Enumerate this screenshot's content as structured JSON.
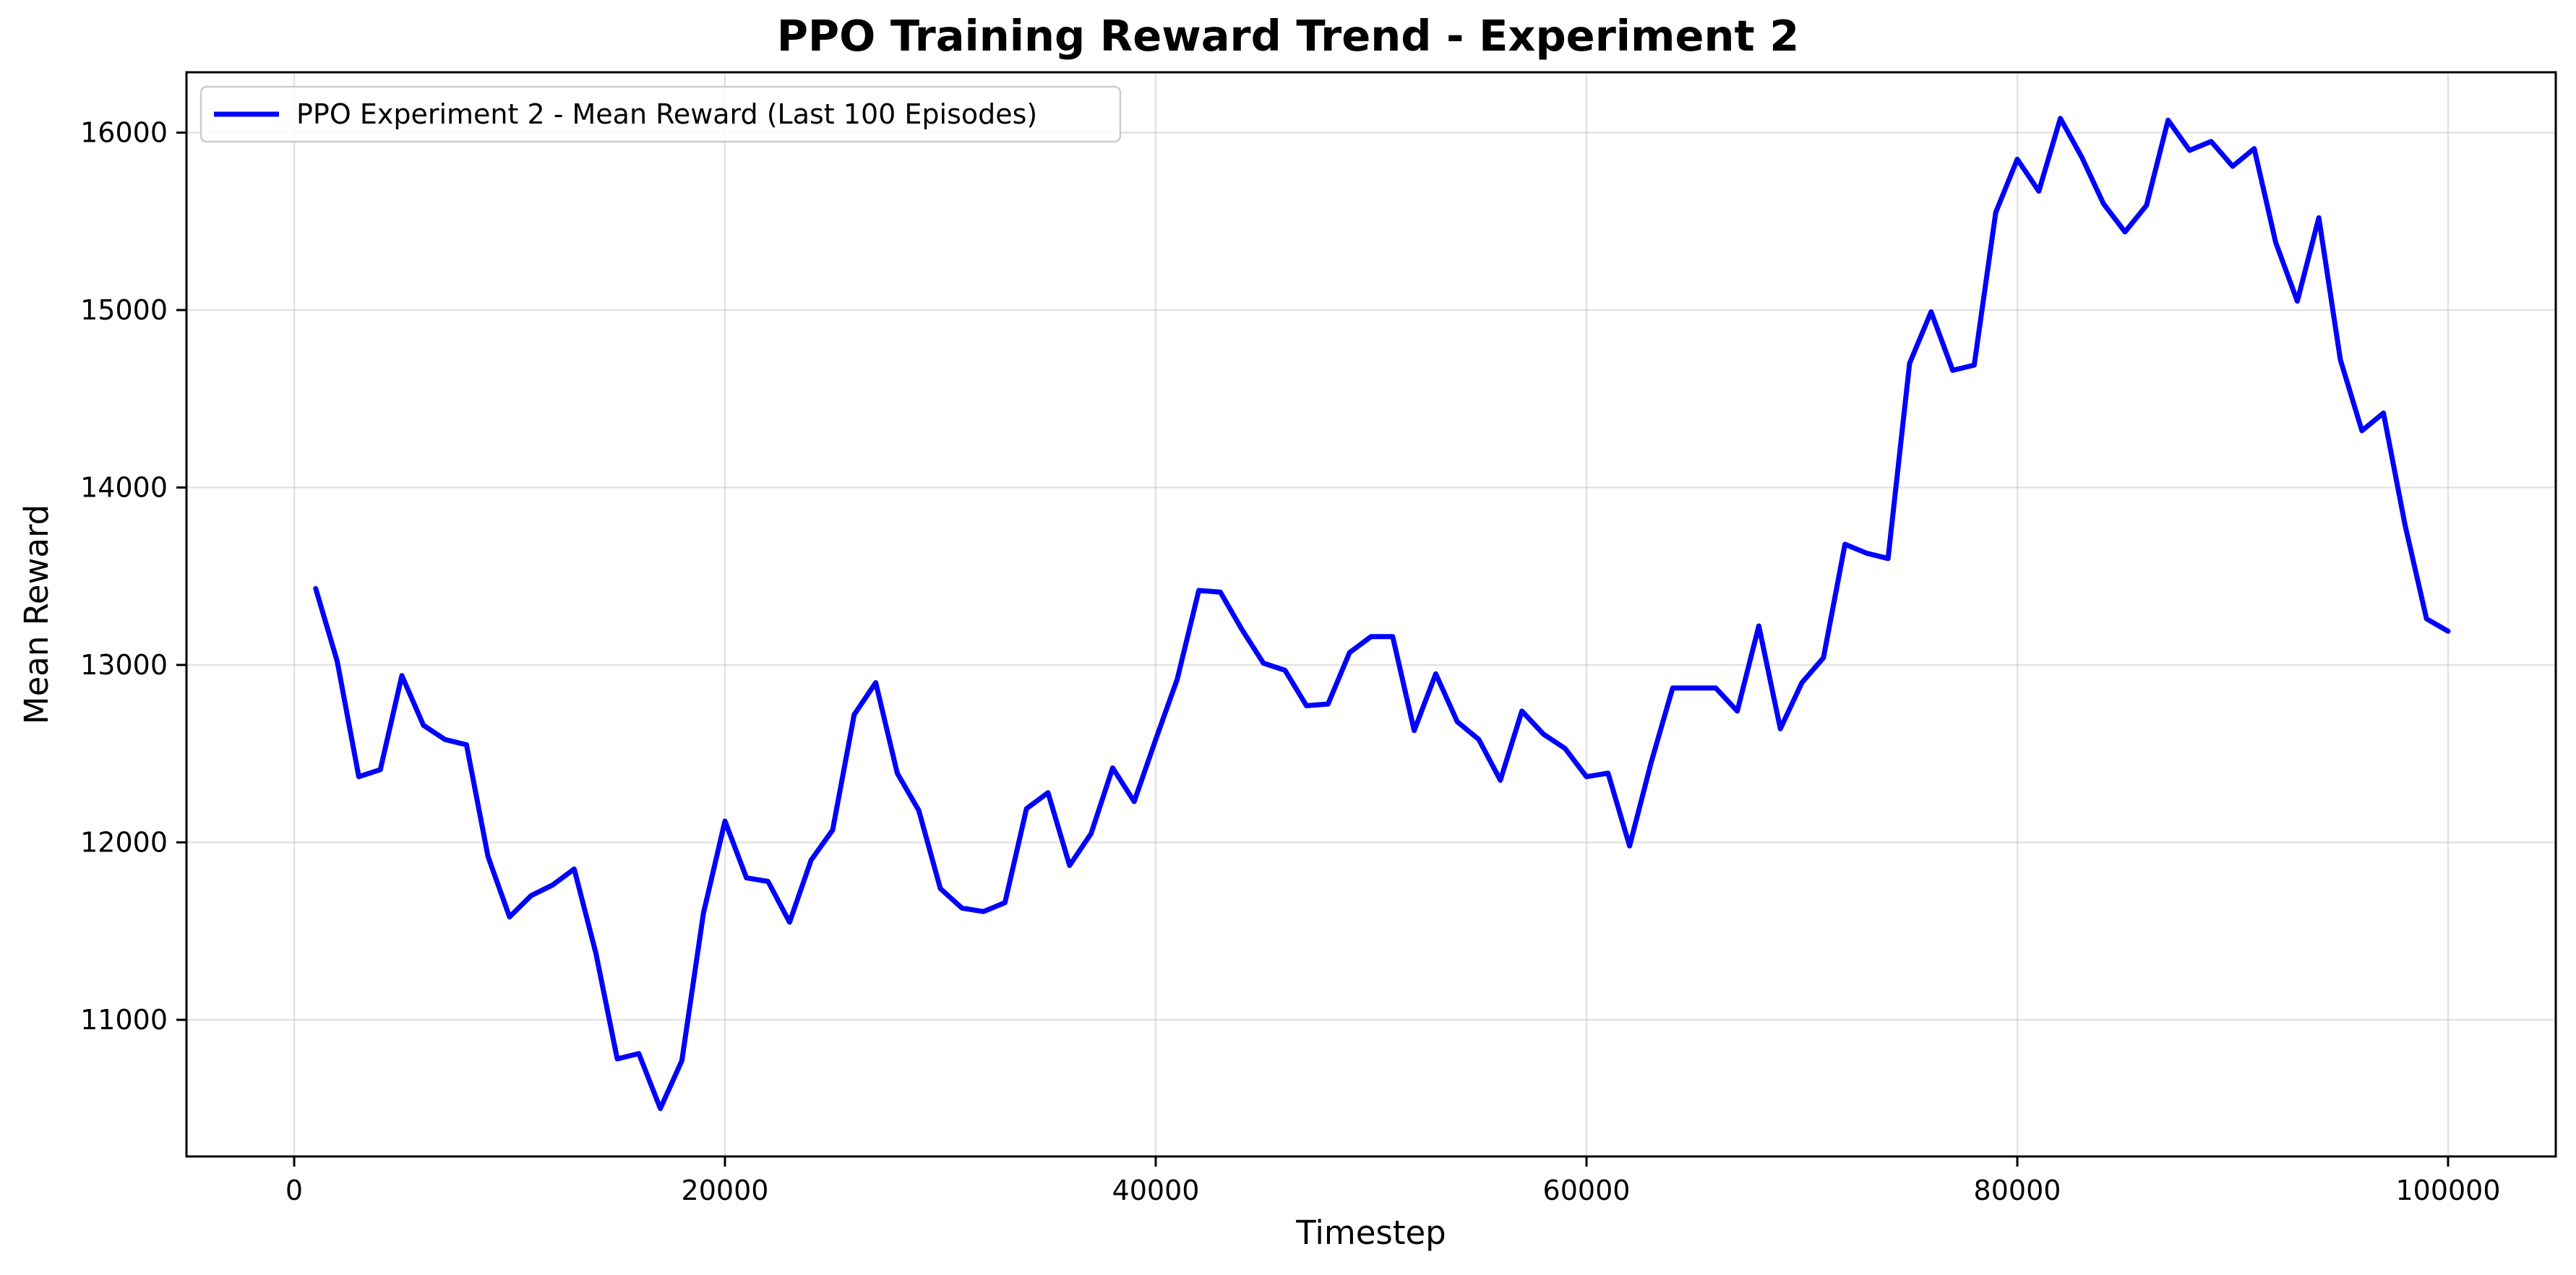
{
  "chart_data": {
    "type": "line",
    "title": "PPO Training Reward Trend - Experiment 2",
    "xlabel": "Timestep",
    "ylabel": "Mean Reward",
    "xlim": [
      -5000,
      105000
    ],
    "ylim": [
      10230,
      16340
    ],
    "xticks": [
      0,
      20000,
      40000,
      60000,
      80000,
      100000
    ],
    "yticks": [
      11000,
      12000,
      13000,
      14000,
      15000,
      16000
    ],
    "xtick_labels": [
      "0",
      "20000",
      "40000",
      "60000",
      "80000",
      "100000"
    ],
    "ytick_labels": [
      "11000",
      "12000",
      "13000",
      "14000",
      "15000",
      "16000"
    ],
    "grid": true,
    "legend_position": "upper-left",
    "series": [
      {
        "name": "PPO Experiment 2 - Mean Reward (Last 100 Episodes)",
        "color": "#0000ff",
        "x": [
          1000,
          2000,
          3000,
          4000,
          5000,
          6000,
          7000,
          8000,
          9000,
          10000,
          11000,
          12000,
          13000,
          14000,
          15000,
          16000,
          17000,
          18000,
          19000,
          20000,
          21000,
          22000,
          23000,
          24000,
          25000,
          26000,
          27000,
          28000,
          29000,
          30000,
          31000,
          32000,
          33000,
          34000,
          35000,
          36000,
          37000,
          38000,
          39000,
          40000,
          41000,
          42000,
          43000,
          44000,
          45000,
          46000,
          47000,
          48000,
          49000,
          50000,
          51000,
          52000,
          53000,
          54000,
          55000,
          56000,
          57000,
          58000,
          59000,
          60000,
          61000,
          62000,
          63000,
          64000,
          65000,
          66000,
          67000,
          68000,
          69000,
          70000,
          71000,
          72000,
          73000,
          74000,
          75000,
          76000,
          77000,
          78000,
          79000,
          80000,
          81000,
          82000,
          83000,
          84000,
          85000,
          86000,
          87000,
          88000,
          89000,
          90000,
          91000,
          92000,
          93000,
          94000,
          95000,
          96000,
          97000,
          98000,
          99000,
          100000
        ],
        "y": [
          13430,
          13020,
          12370,
          12410,
          12940,
          12660,
          12580,
          12550,
          11920,
          11580,
          11700,
          11760,
          11850,
          11380,
          10780,
          10810,
          10500,
          10770,
          11600,
          12120,
          11800,
          11780,
          11550,
          11900,
          12070,
          12720,
          12900,
          12390,
          12180,
          11740,
          11630,
          11610,
          11660,
          12190,
          12280,
          11870,
          12050,
          12420,
          12230,
          12580,
          12920,
          13420,
          13410,
          13200,
          13010,
          12970,
          12770,
          12780,
          13070,
          13160,
          13160,
          12630,
          12950,
          12680,
          12580,
          12350,
          12740,
          12610,
          12530,
          12370,
          12390,
          11980,
          12450,
          12870,
          12870,
          12870,
          12740,
          13220,
          12640,
          12900,
          13040,
          13680,
          13630,
          13600,
          14700,
          14990,
          14660,
          14690,
          15550,
          15850,
          15670,
          16080,
          15860,
          15600,
          15440,
          15590,
          16070,
          15900,
          15950,
          15810,
          15910,
          15380,
          15050,
          15520,
          14720,
          14320,
          14420,
          13790,
          13260,
          13190
        ]
      }
    ]
  }
}
